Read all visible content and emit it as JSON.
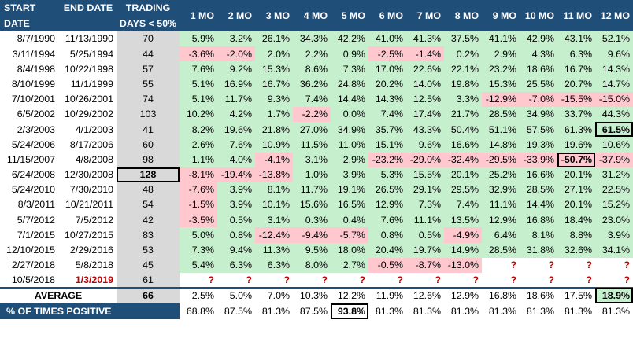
{
  "colors": {
    "header_bg": "#1f4e79",
    "positive_bg": "#c6efce",
    "negative_bg": "#ffc7ce",
    "days_bg": "#d9d9d9",
    "question_color": "#c00000"
  },
  "headers": {
    "start_l1": "START",
    "start_l2": "DATE",
    "end_l1": "END DATE",
    "trading_l1": "TRADING",
    "trading_l2": "DAYS < 50%",
    "months": [
      "1 MO",
      "2 MO",
      "3 MO",
      "4 MO",
      "5 MO",
      "6 MO",
      "7 MO",
      "8 MO",
      "9 MO",
      "10 MO",
      "11 MO",
      "12 MO"
    ]
  },
  "rows": [
    {
      "start": "8/7/1990",
      "end": "11/13/1990",
      "days": "70",
      "values": [
        "5.9%",
        "3.2%",
        "26.1%",
        "34.3%",
        "42.2%",
        "41.0%",
        "41.3%",
        "37.5%",
        "41.1%",
        "42.9%",
        "43.1%",
        "52.1%"
      ]
    },
    {
      "start": "3/11/1994",
      "end": "5/25/1994",
      "days": "44",
      "values": [
        "-3.6%",
        "-2.0%",
        "2.0%",
        "2.2%",
        "0.9%",
        "-2.5%",
        "-1.4%",
        "0.2%",
        "2.9%",
        "4.3%",
        "6.3%",
        "9.6%"
      ]
    },
    {
      "start": "8/4/1998",
      "end": "10/22/1998",
      "days": "57",
      "values": [
        "7.6%",
        "9.2%",
        "15.3%",
        "8.6%",
        "7.3%",
        "17.0%",
        "22.6%",
        "22.1%",
        "23.2%",
        "18.6%",
        "16.7%",
        "14.3%"
      ]
    },
    {
      "start": "8/10/1999",
      "end": "11/1/1999",
      "days": "55",
      "values": [
        "5.1%",
        "16.9%",
        "16.7%",
        "36.2%",
        "24.8%",
        "20.2%",
        "14.0%",
        "19.8%",
        "15.3%",
        "25.5%",
        "20.7%",
        "14.7%"
      ]
    },
    {
      "start": "7/10/2001",
      "end": "10/26/2001",
      "days": "74",
      "values": [
        "5.1%",
        "11.7%",
        "9.3%",
        "7.4%",
        "14.4%",
        "14.3%",
        "12.5%",
        "3.3%",
        "-12.9%",
        "-7.0%",
        "-15.5%",
        "-15.0%"
      ]
    },
    {
      "start": "6/5/2002",
      "end": "10/29/2002",
      "days": "103",
      "values": [
        "10.2%",
        "4.2%",
        "1.7%",
        "-2.2%",
        "0.0%",
        "7.4%",
        "17.4%",
        "21.7%",
        "28.5%",
        "34.9%",
        "33.7%",
        "44.3%"
      ]
    },
    {
      "start": "2/3/2003",
      "end": "4/1/2003",
      "days": "41",
      "values": [
        "8.2%",
        "19.6%",
        "21.8%",
        "27.0%",
        "34.9%",
        "35.7%",
        "43.3%",
        "50.4%",
        "51.1%",
        "57.5%",
        "61.3%",
        "61.5%"
      ]
    },
    {
      "start": "5/24/2006",
      "end": "8/17/2006",
      "days": "60",
      "values": [
        "2.6%",
        "7.6%",
        "10.9%",
        "11.5%",
        "11.0%",
        "15.1%",
        "9.6%",
        "16.6%",
        "14.8%",
        "19.3%",
        "19.6%",
        "10.6%"
      ]
    },
    {
      "start": "11/15/2007",
      "end": "4/8/2008",
      "days": "98",
      "values": [
        "1.1%",
        "4.0%",
        "-4.1%",
        "3.1%",
        "2.9%",
        "-23.2%",
        "-29.0%",
        "-32.4%",
        "-29.5%",
        "-33.9%",
        "-50.7%",
        "-37.9%"
      ]
    },
    {
      "start": "6/24/2008",
      "end": "12/30/2008",
      "days": "128",
      "values": [
        "-8.1%",
        "-19.4%",
        "-13.8%",
        "1.0%",
        "3.9%",
        "5.3%",
        "15.5%",
        "20.1%",
        "25.2%",
        "16.6%",
        "20.1%",
        "31.2%"
      ]
    },
    {
      "start": "5/24/2010",
      "end": "7/30/2010",
      "days": "48",
      "values": [
        "-7.6%",
        "3.9%",
        "8.1%",
        "11.7%",
        "19.1%",
        "26.5%",
        "29.1%",
        "29.5%",
        "32.9%",
        "28.5%",
        "27.1%",
        "22.5%"
      ]
    },
    {
      "start": "8/3/2011",
      "end": "10/21/2011",
      "days": "54",
      "values": [
        "-1.5%",
        "3.9%",
        "10.1%",
        "15.6%",
        "16.5%",
        "12.9%",
        "7.3%",
        "7.4%",
        "11.1%",
        "14.4%",
        "20.1%",
        "15.2%"
      ]
    },
    {
      "start": "5/7/2012",
      "end": "7/5/2012",
      "days": "42",
      "values": [
        "-3.5%",
        "0.5%",
        "3.1%",
        "0.3%",
        "0.4%",
        "7.6%",
        "11.1%",
        "13.5%",
        "12.9%",
        "16.8%",
        "18.4%",
        "23.0%"
      ]
    },
    {
      "start": "7/1/2015",
      "end": "10/27/2015",
      "days": "83",
      "values": [
        "5.0%",
        "0.8%",
        "-12.4%",
        "-9.4%",
        "-5.7%",
        "0.8%",
        "0.5%",
        "-4.9%",
        "6.4%",
        "8.1%",
        "8.8%",
        "3.9%"
      ]
    },
    {
      "start": "12/10/2015",
      "end": "2/29/2016",
      "days": "53",
      "values": [
        "7.3%",
        "9.4%",
        "11.3%",
        "9.5%",
        "18.0%",
        "20.4%",
        "19.7%",
        "14.9%",
        "28.5%",
        "31.8%",
        "32.6%",
        "34.1%"
      ]
    },
    {
      "start": "2/27/2018",
      "end": "5/8/2018",
      "days": "45",
      "values": [
        "5.4%",
        "6.3%",
        "6.3%",
        "8.0%",
        "2.7%",
        "-0.5%",
        "-8.7%",
        "-13.0%",
        "?",
        "?",
        "?",
        "?"
      ]
    },
    {
      "start": "10/5/2018",
      "end": "1/3/2019",
      "days": "61",
      "values": [
        "?",
        "?",
        "?",
        "?",
        "?",
        "?",
        "?",
        "?",
        "?",
        "?",
        "?",
        "?"
      ]
    }
  ],
  "average": {
    "label": "AVERAGE",
    "days": "66",
    "values": [
      "2.5%",
      "5.0%",
      "7.0%",
      "10.3%",
      "12.2%",
      "11.9%",
      "12.6%",
      "12.9%",
      "16.8%",
      "18.6%",
      "17.5%",
      "18.9%"
    ]
  },
  "pct_positive": {
    "label": "% OF TIMES POSITIVE",
    "values": [
      "68.8%",
      "87.5%",
      "81.3%",
      "87.5%",
      "93.8%",
      "81.3%",
      "81.3%",
      "81.3%",
      "81.3%",
      "81.3%",
      "81.3%",
      "81.3%"
    ]
  }
}
